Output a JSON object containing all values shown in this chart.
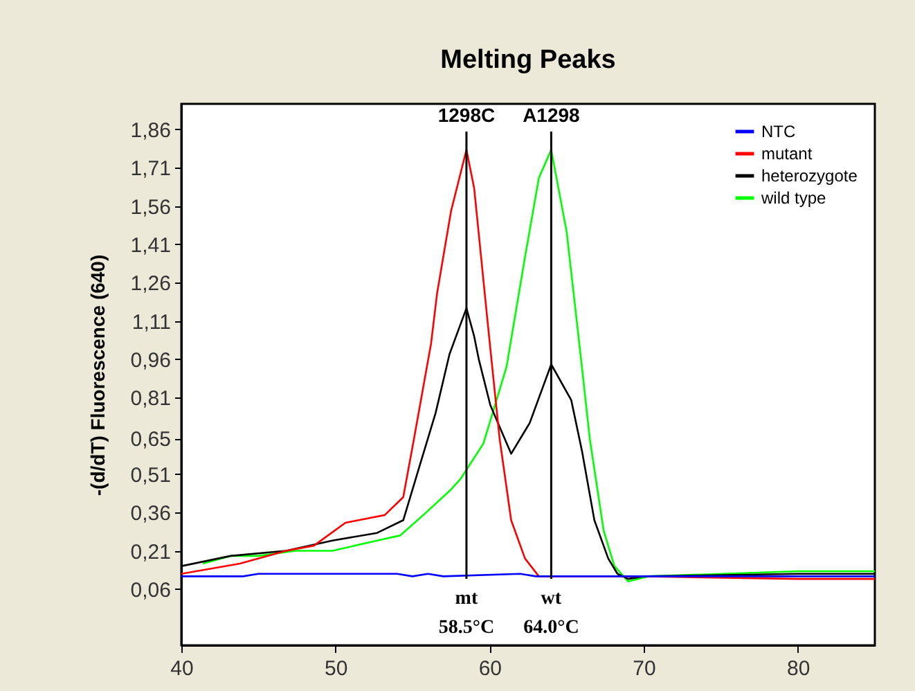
{
  "chart_data": {
    "type": "line",
    "title": "Melting Peaks",
    "ylabel": "-(d/dT) Fluorescence (640)",
    "xlim": [
      40,
      85
    ],
    "xticks": [
      40,
      50,
      60,
      70,
      80
    ],
    "ylim": [
      -0.16,
      1.96
    ],
    "yticks": [
      {
        "value": 0.06,
        "label": "0,06"
      },
      {
        "value": 0.21,
        "label": "0,21"
      },
      {
        "value": 0.36,
        "label": "0,36"
      },
      {
        "value": 0.51,
        "label": "0,51"
      },
      {
        "value": 0.65,
        "label": "0,65"
      },
      {
        "value": 0.81,
        "label": "0,81"
      },
      {
        "value": 0.96,
        "label": "0,96"
      },
      {
        "value": 1.11,
        "label": "1,11"
      },
      {
        "value": 1.26,
        "label": "1,26"
      },
      {
        "value": 1.41,
        "label": "1,41"
      },
      {
        "value": 1.56,
        "label": "1,56"
      },
      {
        "value": 1.71,
        "label": "1,71"
      },
      {
        "value": 1.86,
        "label": "1,86"
      }
    ],
    "grid": false,
    "legend": "top right",
    "marker": "none",
    "line_style": "solid",
    "series": [
      {
        "name": "NTC",
        "color": "#0000ff",
        "x": [
          40,
          44,
          45,
          54,
          55,
          56,
          57,
          62,
          63,
          70,
          80,
          85
        ],
        "values": [
          0.11,
          0.11,
          0.12,
          0.12,
          0.11,
          0.12,
          0.11,
          0.12,
          0.11,
          0.11,
          0.11,
          0.11
        ]
      },
      {
        "name": "mutant",
        "color": "#ff0000",
        "x": [
          40,
          43.8,
          46.8,
          48.6,
          50.65,
          53.2,
          54.4,
          55.1,
          56.2,
          56.6,
          57.5,
          58.5,
          59.0,
          59.9,
          60.65,
          61.4,
          62.3,
          63.2,
          70,
          80,
          85
        ],
        "values": [
          0.12,
          0.16,
          0.21,
          0.23,
          0.32,
          0.35,
          0.42,
          0.65,
          1.02,
          1.22,
          1.54,
          1.78,
          1.63,
          1.09,
          0.65,
          0.33,
          0.18,
          0.11,
          0.11,
          0.1,
          0.1
        ]
      },
      {
        "name": "heterozygote",
        "color": "#000000",
        "x": [
          40,
          43.2,
          46.8,
          49.8,
          52.7,
          54.4,
          55.4,
          56.5,
          57.4,
          58.5,
          59.0,
          59.3,
          60.05,
          61.4,
          62.6,
          64.0,
          65.3,
          66.0,
          66.8,
          67.7,
          68.3,
          69,
          70,
          80,
          85
        ],
        "values": [
          0.15,
          0.19,
          0.21,
          0.25,
          0.28,
          0.33,
          0.53,
          0.75,
          0.98,
          1.16,
          1.05,
          0.96,
          0.78,
          0.59,
          0.71,
          0.94,
          0.8,
          0.6,
          0.33,
          0.18,
          0.12,
          0.1,
          0.11,
          0.12,
          0.12
        ]
      },
      {
        "name": "wild type",
        "color": "#00ff00",
        "x": [
          41.4,
          43.2,
          45.0,
          47.4,
          49.8,
          52.7,
          54.2,
          55.7,
          57.5,
          58.1,
          59.6,
          61.1,
          62.3,
          63.2,
          64.0,
          65.0,
          65.9,
          66.5,
          67.4,
          68.1,
          69.0,
          70.3,
          80,
          85
        ],
        "values": [
          0.16,
          0.19,
          0.19,
          0.21,
          0.21,
          0.25,
          0.27,
          0.35,
          0.45,
          0.49,
          0.63,
          0.93,
          1.36,
          1.67,
          1.78,
          1.46,
          0.98,
          0.65,
          0.29,
          0.15,
          0.09,
          0.11,
          0.13,
          0.13
        ]
      }
    ],
    "ref_lines": [
      {
        "axis": "x",
        "value": 58.5,
        "label": "1298C",
        "color": "#000000"
      },
      {
        "axis": "x",
        "value": 64.0,
        "label": "A1298",
        "color": "#000000"
      }
    ],
    "annotations": [
      "mt",
      "58.5°C",
      "wt",
      "64.0°C"
    ]
  }
}
